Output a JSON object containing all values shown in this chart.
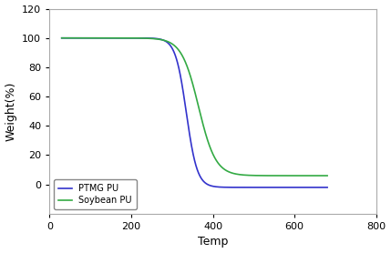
{
  "title": "",
  "xlabel": "Temp",
  "ylabel": "Weight(%)",
  "xlim": [
    0,
    800
  ],
  "ylim": [
    -20,
    120
  ],
  "xticks": [
    0,
    200,
    400,
    600,
    800
  ],
  "yticks": [
    0,
    20,
    40,
    60,
    80,
    100,
    120
  ],
  "ptmg_color": "#3333CC",
  "soybean_color": "#33AA44",
  "ptmg_label": "PTMG PU",
  "soybean_label": "Soybean PU",
  "linewidth": 1.2,
  "legend_loc": "lower left",
  "legend_fontsize": 7,
  "axis_fontsize": 9,
  "tick_fontsize": 8,
  "ptmg_x0": 335,
  "ptmg_k": 0.075,
  "ptmg_start": 100,
  "ptmg_end": -2,
  "soybean_x0": 365,
  "soybean_k": 0.048,
  "soybean_start": 100,
  "soybean_end": 6
}
